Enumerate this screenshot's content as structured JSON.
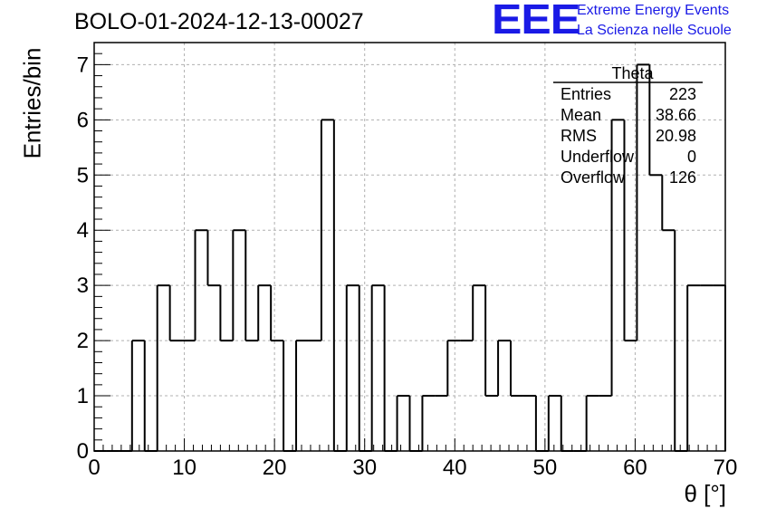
{
  "chart_data": {
    "type": "bar",
    "title": "BOLO-01-2024-12-13-00027",
    "xlabel": "θ [°]",
    "ylabel": "Entries/bin",
    "xlim": [
      0,
      70
    ],
    "ylim": [
      0,
      7.4
    ],
    "grid": true,
    "bin_width": 1.4,
    "bins": [
      {
        "x": 0.0,
        "value": 0
      },
      {
        "x": 1.4,
        "value": 0
      },
      {
        "x": 2.8,
        "value": 0
      },
      {
        "x": 4.2,
        "value": 2
      },
      {
        "x": 5.6,
        "value": 0
      },
      {
        "x": 7.0,
        "value": 3
      },
      {
        "x": 8.4,
        "value": 2
      },
      {
        "x": 9.8,
        "value": 2
      },
      {
        "x": 11.2,
        "value": 4
      },
      {
        "x": 12.6,
        "value": 3
      },
      {
        "x": 14.0,
        "value": 2
      },
      {
        "x": 15.4,
        "value": 4
      },
      {
        "x": 16.8,
        "value": 2
      },
      {
        "x": 18.2,
        "value": 3
      },
      {
        "x": 19.6,
        "value": 2
      },
      {
        "x": 21.0,
        "value": 0
      },
      {
        "x": 22.4,
        "value": 2
      },
      {
        "x": 23.8,
        "value": 2
      },
      {
        "x": 25.2,
        "value": 6
      },
      {
        "x": 26.6,
        "value": 0
      },
      {
        "x": 28.0,
        "value": 3
      },
      {
        "x": 29.4,
        "value": 0
      },
      {
        "x": 30.8,
        "value": 3
      },
      {
        "x": 32.2,
        "value": 0
      },
      {
        "x": 33.6,
        "value": 1
      },
      {
        "x": 35.0,
        "value": 0
      },
      {
        "x": 36.4,
        "value": 1
      },
      {
        "x": 37.8,
        "value": 1
      },
      {
        "x": 39.2,
        "value": 2
      },
      {
        "x": 40.6,
        "value": 2
      },
      {
        "x": 42.0,
        "value": 3
      },
      {
        "x": 43.4,
        "value": 1
      },
      {
        "x": 44.8,
        "value": 2
      },
      {
        "x": 46.2,
        "value": 1
      },
      {
        "x": 47.6,
        "value": 1
      },
      {
        "x": 49.0,
        "value": 0
      },
      {
        "x": 50.4,
        "value": 1
      },
      {
        "x": 51.8,
        "value": 0
      },
      {
        "x": 53.2,
        "value": 0
      },
      {
        "x": 54.6,
        "value": 1
      },
      {
        "x": 56.0,
        "value": 1
      },
      {
        "x": 57.4,
        "value": 6
      },
      {
        "x": 58.8,
        "value": 2
      },
      {
        "x": 60.2,
        "value": 7
      },
      {
        "x": 61.6,
        "value": 5
      },
      {
        "x": 63.0,
        "value": 4
      },
      {
        "x": 64.4,
        "value": 0
      },
      {
        "x": 65.8,
        "value": 3
      },
      {
        "x": 67.2,
        "value": 3
      },
      {
        "x": 68.6,
        "value": 3
      }
    ],
    "x_ticks": [
      "0",
      "10",
      "20",
      "30",
      "40",
      "50",
      "60",
      "70"
    ],
    "y_ticks": [
      "0",
      "1",
      "2",
      "3",
      "4",
      "5",
      "6",
      "7"
    ],
    "stats_box": {
      "name": "Theta",
      "rows": [
        {
          "label": "Entries",
          "value": "223"
        },
        {
          "label": "Mean",
          "value": "38.66"
        },
        {
          "label": "RMS",
          "value": "20.98"
        },
        {
          "label": "Underflow",
          "value": "0"
        },
        {
          "label": "Overflow",
          "value": "126"
        }
      ]
    }
  },
  "logo": {
    "mark": "EEE",
    "line1": "Extreme Energy Events",
    "line2": "La Scienza nelle Scuole"
  },
  "colors": {
    "logo": "#1a1ae6",
    "line": "#000000",
    "grid": "#b0b0b0"
  }
}
